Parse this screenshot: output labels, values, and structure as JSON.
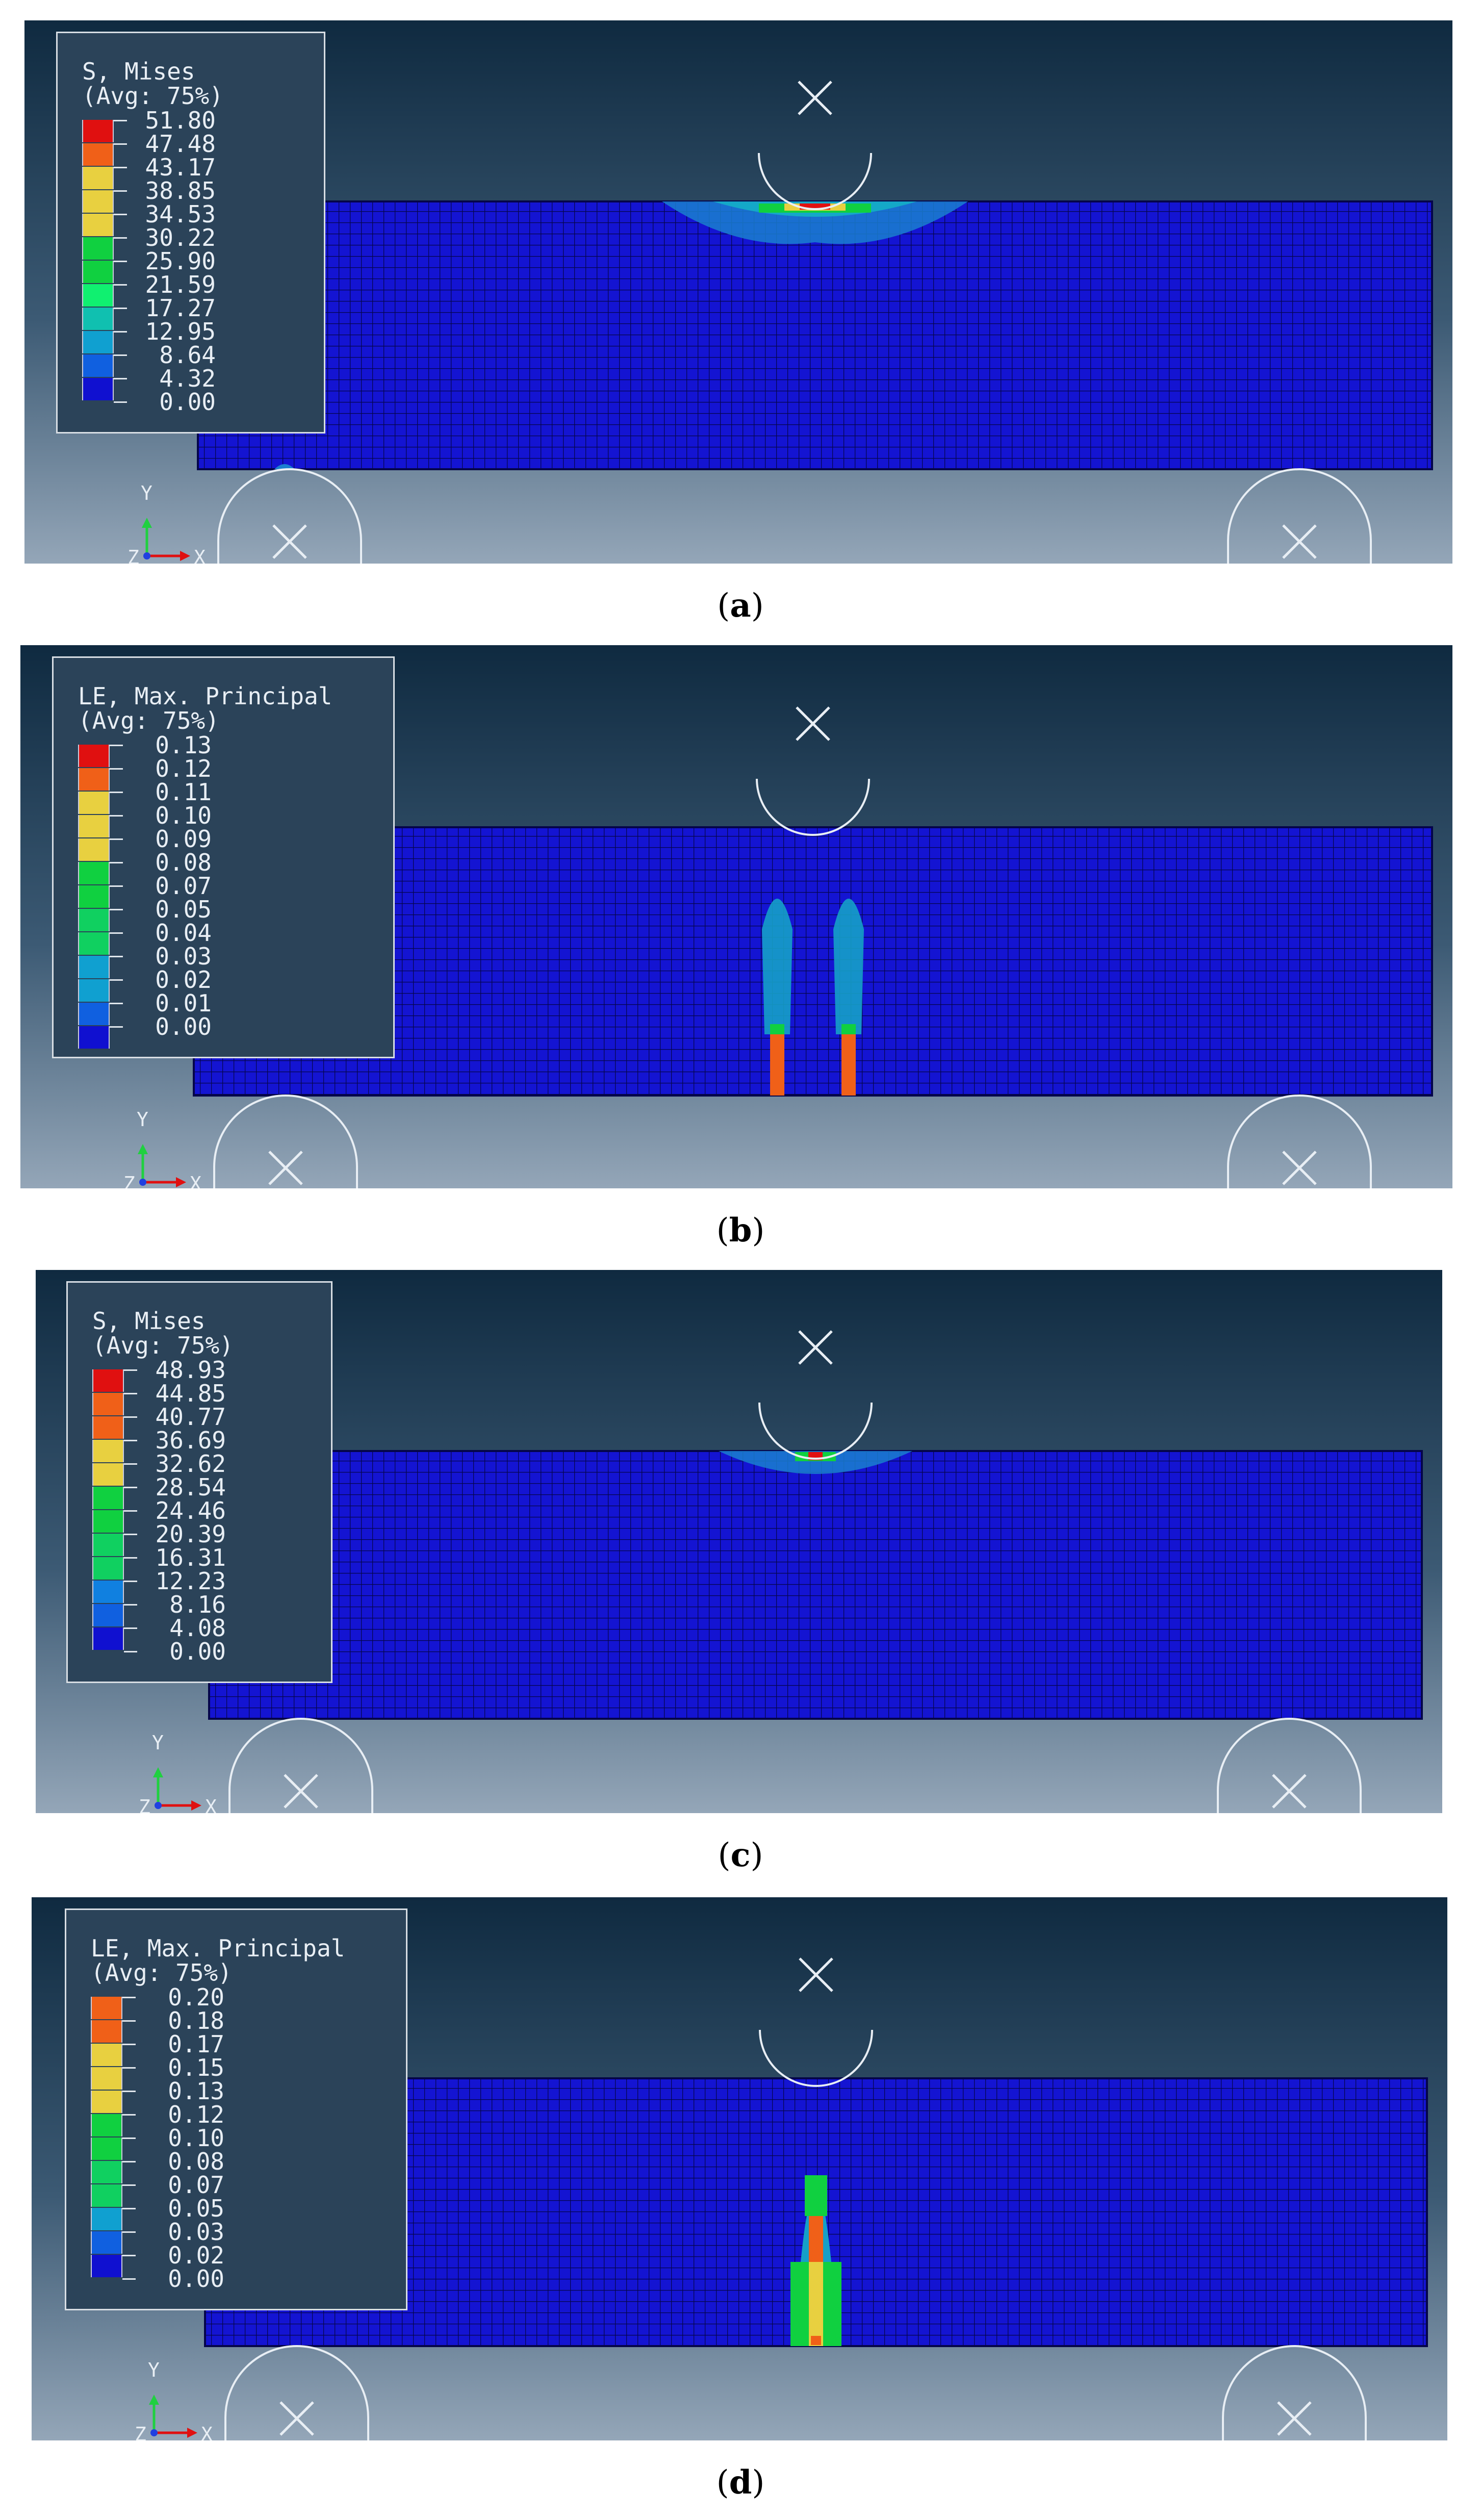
{
  "panels": [
    {
      "id": "a",
      "caption_letter": "a",
      "legend": {
        "title": "S, Mises",
        "avg": "(Avg: 75%)",
        "values": [
          "51.80",
          "47.48",
          "43.17",
          "38.85",
          "34.53",
          "30.22",
          "25.90",
          "21.59",
          "17.27",
          "12.95",
          "8.64",
          "4.32",
          "0.00"
        ],
        "colors": [
          "#e01010",
          "#f06018",
          "#e8d040",
          "#e8d040",
          "#e8d040",
          "#10d040",
          "#10d040",
          "#10f070",
          "#10c0b0",
          "#10a0d0",
          "#1060e0",
          "#1010d0"
        ]
      },
      "axis": {
        "y_label": "Y",
        "x_label": "X",
        "z_label": "Z"
      }
    },
    {
      "id": "b",
      "caption_letter": "b",
      "legend": {
        "title": "LE, Max. Principal",
        "avg": "(Avg: 75%)",
        "values": [
          "0.13",
          "0.12",
          "0.11",
          "0.10",
          "0.09",
          "0.08",
          "0.07",
          "0.05",
          "0.04",
          "0.03",
          "0.02",
          "0.01",
          "0.00"
        ],
        "colors": [
          "#e01010",
          "#f06018",
          "#e8d040",
          "#e8d040",
          "#e8d040",
          "#10d040",
          "#10d040",
          "#10d060",
          "#10d060",
          "#10a0d0",
          "#10a0d0",
          "#1060e0",
          "#1010d0"
        ]
      },
      "axis": {
        "y_label": "Y",
        "x_label": "X",
        "z_label": "Z"
      }
    },
    {
      "id": "c",
      "caption_letter": "c",
      "legend": {
        "title": "S, Mises",
        "avg": "(Avg: 75%)",
        "values": [
          "48.93",
          "44.85",
          "40.77",
          "36.69",
          "32.62",
          "28.54",
          "24.46",
          "20.39",
          "16.31",
          "12.23",
          "8.16",
          "4.08",
          "0.00"
        ],
        "colors": [
          "#e01010",
          "#f06018",
          "#f06018",
          "#e8d040",
          "#e8d040",
          "#10d040",
          "#10d040",
          "#10d060",
          "#10d060",
          "#1080e0",
          "#1060e0",
          "#1010d0"
        ]
      },
      "axis": {
        "y_label": "Y",
        "x_label": "X",
        "z_label": "Z"
      }
    },
    {
      "id": "d",
      "caption_letter": "d",
      "legend": {
        "title": "LE, Max. Principal",
        "avg": "(Avg: 75%)",
        "values": [
          "0.20",
          "0.18",
          "0.17",
          "0.15",
          "0.13",
          "0.12",
          "0.10",
          "0.08",
          "0.07",
          "0.05",
          "0.03",
          "0.02",
          "0.00"
        ],
        "colors": [
          "#f06018",
          "#f06018",
          "#e8d040",
          "#e8d040",
          "#e8d040",
          "#10d040",
          "#10d040",
          "#10d060",
          "#10d060",
          "#10a0d0",
          "#1060e0",
          "#1010d0"
        ]
      },
      "axis": {
        "y_label": "Y",
        "x_label": "X",
        "z_label": "Z"
      }
    }
  ]
}
